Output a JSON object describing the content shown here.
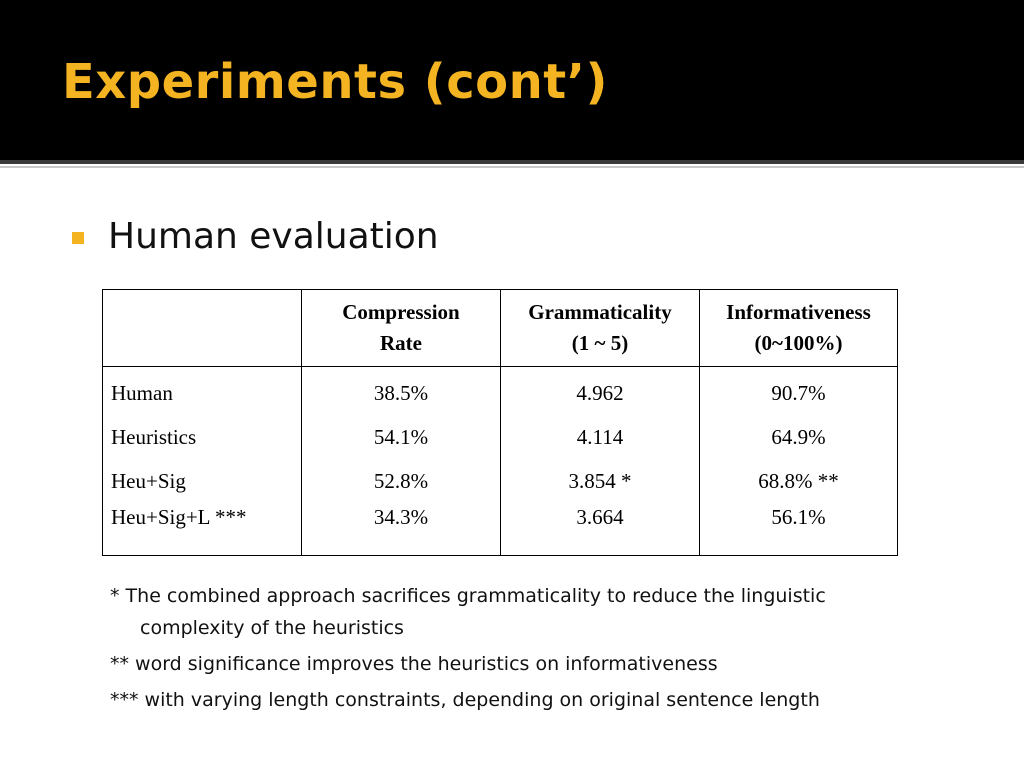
{
  "slide": {
    "title": "Experiments (cont’)",
    "bullet": "Human evaluation"
  },
  "table": {
    "headers": [
      {
        "line1": "",
        "line2": ""
      },
      {
        "line1": "Compression",
        "line2": "Rate"
      },
      {
        "line1": "Grammaticality",
        "line2": "(1 ~ 5)"
      },
      {
        "line1": "Informativeness",
        "line2": "(0~100%)"
      }
    ],
    "rows": [
      {
        "name": "Human",
        "compression": "38.5%",
        "grammaticality": "4.962",
        "informativeness": "90.7%"
      },
      {
        "name": "Heuristics",
        "compression": "54.1%",
        "grammaticality": "4.114",
        "informativeness": "64.9%"
      },
      {
        "name": "Heu+Sig",
        "compression": "52.8%",
        "grammaticality": "3.854 *",
        "informativeness": "68.8% **"
      },
      {
        "name": "Heu+Sig+L ***",
        "compression": "34.3%",
        "grammaticality": "3.664",
        "informativeness": "56.1%"
      }
    ]
  },
  "notes": [
    "* The combined approach sacrifices grammaticality to reduce the linguistic complexity of the heuristics",
    "** word significance improves the heuristics on informativeness",
    "*** with varying length constraints, depending on original sentence length"
  ],
  "colors": {
    "title_bar": "#000000",
    "title_text": "#f4b321",
    "bullet": "#f4b321",
    "body_text": "#111111"
  }
}
